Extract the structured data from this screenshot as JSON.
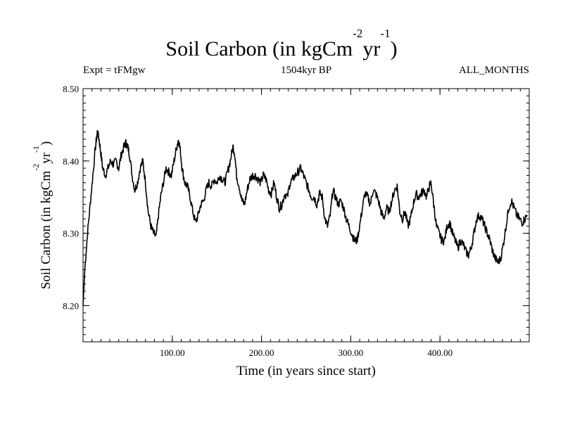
{
  "chart_data": {
    "type": "line",
    "title": {
      "base": "Soil Carbon (in kgCm",
      "sup1": "-2",
      "mid": "yr",
      "sup2": "-1",
      "end": ")"
    },
    "subtitle_left": "Expt = tFMgw",
    "subtitle_center": "1504kyr BP",
    "subtitle_right": "ALL_MONTHS",
    "xlabel": "Time (in years since start)",
    "ylabel": {
      "base": "Soil Carbon (in kgCm",
      "sup1": "-2",
      "mid": "yr",
      "sup2": "-1",
      "end": ")"
    },
    "xlim": [
      0,
      500
    ],
    "ylim": [
      8.15,
      8.5
    ],
    "x_ticks": [
      100,
      200,
      300,
      400
    ],
    "x_tick_labels": [
      "100.00",
      "200.00",
      "300.00",
      "400.00"
    ],
    "y_ticks": [
      8.2,
      8.3,
      8.4,
      8.5
    ],
    "y_tick_labels": [
      "8.20",
      "8.30",
      "8.40",
      "8.50"
    ],
    "series": [
      {
        "name": "Soil Carbon",
        "color": "#000000",
        "x": [
          0,
          2,
          5,
          8,
          11,
          14,
          16,
          18,
          20,
          22,
          25,
          28,
          31,
          34,
          37,
          40,
          43,
          46,
          48,
          50,
          52,
          55,
          58,
          61,
          64,
          67,
          70,
          73,
          76,
          79,
          82,
          84,
          87,
          90,
          93,
          96,
          99,
          102,
          105,
          107,
          109,
          111,
          114,
          117,
          120,
          123,
          126,
          129,
          132,
          135,
          138,
          141,
          144,
          147,
          150,
          153,
          156,
          159,
          162,
          165,
          168,
          170,
          172,
          175,
          178,
          181,
          184,
          187,
          190,
          193,
          196,
          199,
          202,
          205,
          208,
          211,
          214,
          217,
          220,
          223,
          226,
          229,
          232,
          235,
          238,
          241,
          244,
          247,
          250,
          253,
          256,
          259,
          262,
          265,
          268,
          271,
          274,
          277,
          280,
          283,
          286,
          289,
          292,
          295,
          298,
          301,
          304,
          307,
          310,
          313,
          316,
          319,
          322,
          325,
          328,
          331,
          334,
          337,
          340,
          343,
          346,
          349,
          352,
          355,
          358,
          361,
          364,
          367,
          370,
          373,
          376,
          379,
          382,
          385,
          388,
          390,
          393,
          396,
          399,
          402,
          405,
          408,
          411,
          414,
          417,
          420,
          423,
          426,
          429,
          432,
          435,
          438,
          441,
          444,
          447,
          450,
          453,
          456,
          459,
          462,
          465,
          468,
          471,
          474,
          477,
          480,
          483,
          486,
          489,
          492,
          495,
          498
        ],
        "values": [
          8.2,
          8.25,
          8.3,
          8.34,
          8.38,
          8.42,
          8.44,
          8.43,
          8.41,
          8.39,
          8.38,
          8.39,
          8.4,
          8.395,
          8.4,
          8.39,
          8.41,
          8.42,
          8.425,
          8.42,
          8.41,
          8.38,
          8.36,
          8.37,
          8.39,
          8.4,
          8.37,
          8.33,
          8.31,
          8.3,
          8.295,
          8.32,
          8.35,
          8.37,
          8.39,
          8.385,
          8.38,
          8.4,
          8.42,
          8.43,
          8.415,
          8.39,
          8.37,
          8.365,
          8.35,
          8.33,
          8.315,
          8.325,
          8.34,
          8.345,
          8.36,
          8.37,
          8.365,
          8.375,
          8.37,
          8.38,
          8.375,
          8.37,
          8.385,
          8.4,
          8.42,
          8.41,
          8.38,
          8.365,
          8.345,
          8.34,
          8.36,
          8.375,
          8.38,
          8.38,
          8.375,
          8.37,
          8.38,
          8.375,
          8.36,
          8.355,
          8.37,
          8.35,
          8.335,
          8.34,
          8.355,
          8.35,
          8.37,
          8.375,
          8.38,
          8.385,
          8.39,
          8.38,
          8.37,
          8.36,
          8.35,
          8.35,
          8.34,
          8.355,
          8.35,
          8.32,
          8.31,
          8.325,
          8.36,
          8.35,
          8.34,
          8.345,
          8.335,
          8.32,
          8.31,
          8.3,
          8.29,
          8.29,
          8.31,
          8.335,
          8.355,
          8.35,
          8.34,
          8.36,
          8.355,
          8.345,
          8.33,
          8.32,
          8.335,
          8.33,
          8.345,
          8.36,
          8.365,
          8.33,
          8.32,
          8.33,
          8.31,
          8.32,
          8.34,
          8.355,
          8.35,
          8.355,
          8.36,
          8.35,
          8.365,
          8.37,
          8.34,
          8.31,
          8.3,
          8.29,
          8.29,
          8.31,
          8.315,
          8.3,
          8.29,
          8.28,
          8.29,
          8.285,
          8.275,
          8.27,
          8.28,
          8.3,
          8.32,
          8.325,
          8.32,
          8.31,
          8.3,
          8.29,
          8.275,
          8.265,
          8.26,
          8.265,
          8.285,
          8.31,
          8.335,
          8.345,
          8.335,
          8.325,
          8.32,
          8.315,
          8.32,
          8.325
        ]
      }
    ]
  }
}
